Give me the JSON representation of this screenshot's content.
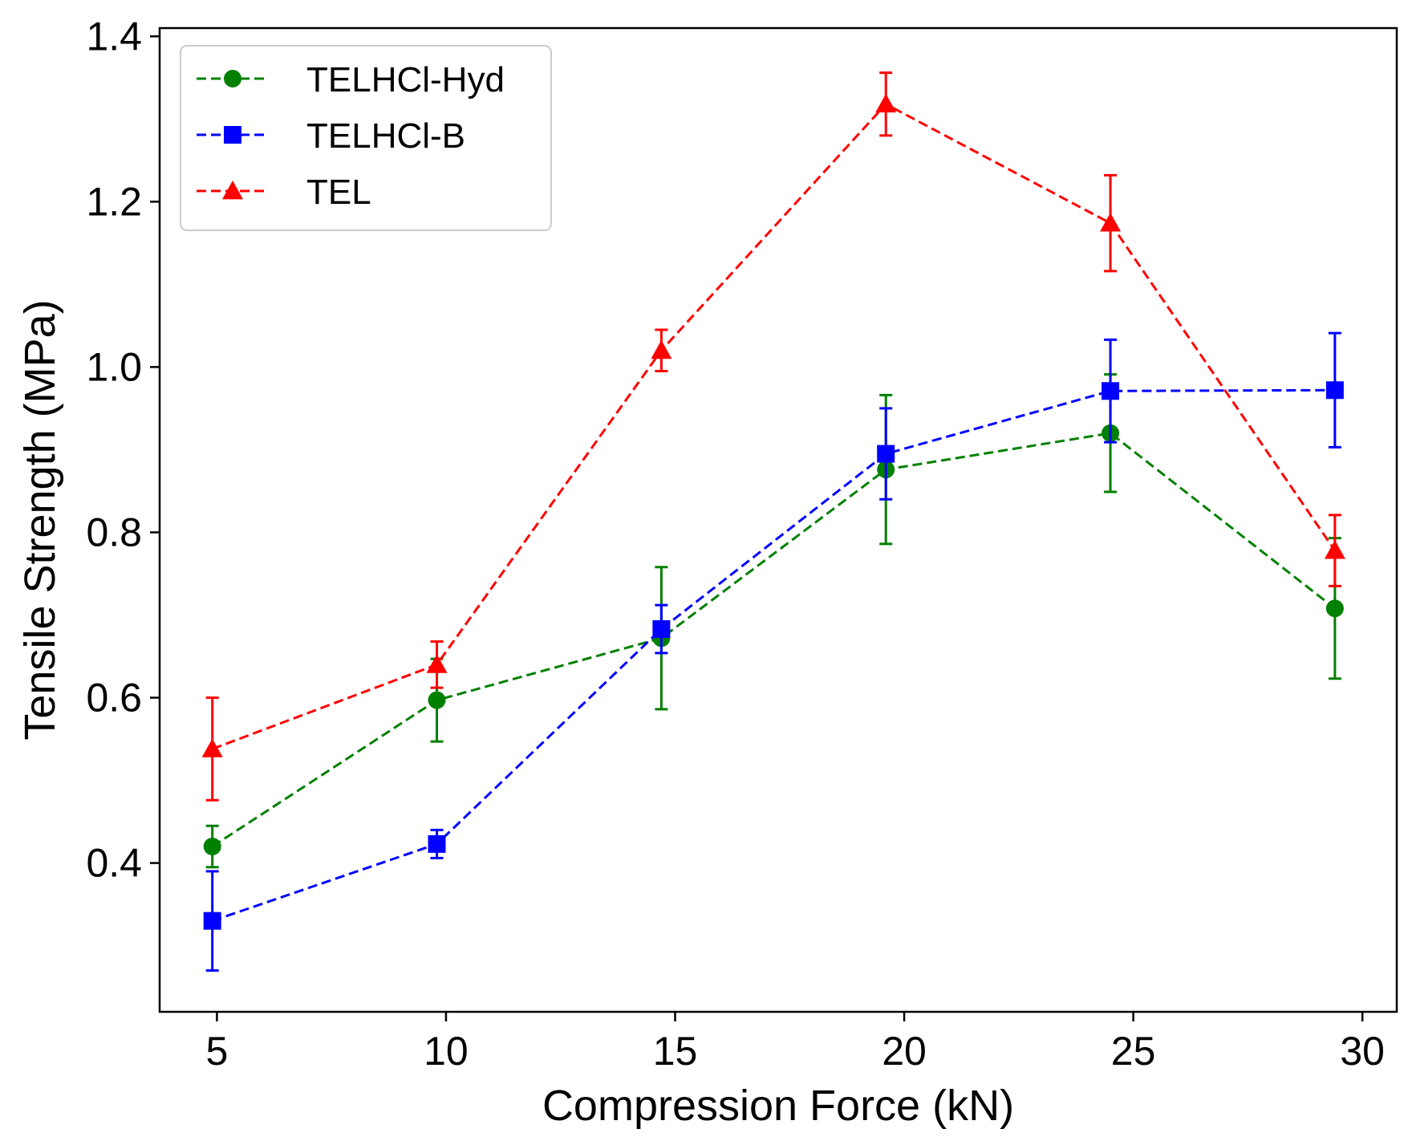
{
  "chart_data": {
    "type": "line",
    "title": "",
    "xlabel": "Compression Force (kN)",
    "ylabel": "Tensile Strength (MPa)",
    "xlim": [
      3.75,
      30.75
    ],
    "ylim": [
      0.22,
      1.41
    ],
    "xticks": [
      5,
      10,
      15,
      20,
      25,
      30
    ],
    "yticks": [
      0.4,
      0.6,
      0.8,
      1.0,
      1.2,
      1.4
    ],
    "xtick_labels": [
      "5",
      "10",
      "15",
      "20",
      "25",
      "30"
    ],
    "ytick_labels": [
      "0.4",
      "0.6",
      "0.8",
      "1.0",
      "1.2",
      "1.4"
    ],
    "grid": false,
    "legend_position": "top-left",
    "x": [
      4.9,
      9.8,
      14.7,
      19.6,
      24.5,
      29.4
    ],
    "series": [
      {
        "name": "TELHCl-Hyd",
        "color": "#008000",
        "marker": "circle",
        "linestyle": "dashed",
        "values": [
          0.42,
          0.597,
          0.672,
          0.876,
          0.92,
          0.708
        ],
        "errors": [
          0.025,
          0.05,
          0.086,
          0.09,
          0.071,
          0.085
        ]
      },
      {
        "name": "TELHCl-B",
        "color": "#0000ff",
        "marker": "square",
        "linestyle": "dashed",
        "values": [
          0.33,
          0.423,
          0.683,
          0.895,
          0.971,
          0.972
        ],
        "errors": [
          0.06,
          0.017,
          0.029,
          0.055,
          0.062,
          0.069
        ]
      },
      {
        "name": "TEL",
        "color": "#ff0000",
        "marker": "triangle",
        "linestyle": "dashed",
        "values": [
          0.538,
          0.64,
          1.02,
          1.318,
          1.174,
          0.778
        ],
        "errors": [
          0.062,
          0.028,
          0.025,
          0.038,
          0.058,
          0.043
        ]
      }
    ]
  }
}
